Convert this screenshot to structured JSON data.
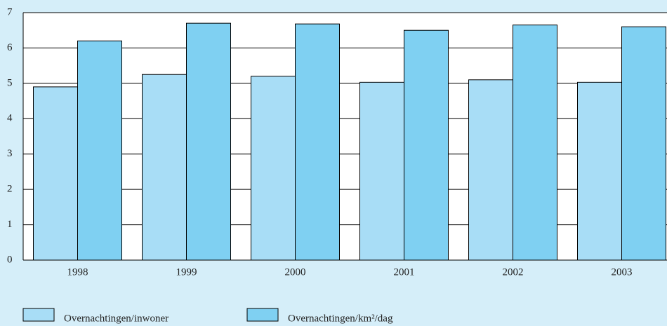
{
  "chart_data": {
    "type": "bar",
    "categories": [
      "1998",
      "1999",
      "2000",
      "2001",
      "2002",
      "2003"
    ],
    "series": [
      {
        "name": "Overnachtingen/inwoner",
        "color": "#a8ddf6",
        "values": [
          4.9,
          5.25,
          5.2,
          5.03,
          5.1,
          5.03
        ]
      },
      {
        "name": "Overnachtingen/km²/dag",
        "color": "#7fd0f2",
        "values": [
          6.2,
          6.7,
          6.68,
          6.5,
          6.65,
          6.6
        ]
      }
    ],
    "ylim": [
      0,
      7
    ],
    "yticks": [
      0,
      1,
      2,
      3,
      4,
      5,
      6,
      7
    ],
    "grid": true
  }
}
